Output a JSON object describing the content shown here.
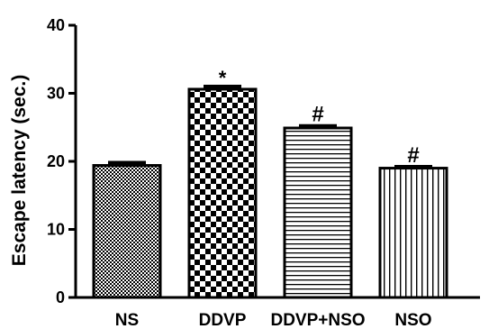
{
  "chart_data": {
    "type": "bar",
    "ylabel": "Escape latency (sec.)",
    "ylim": [
      0,
      40
    ],
    "yticks": [
      0,
      10,
      20,
      30,
      40
    ],
    "yticks_labels": [
      "0",
      "10",
      "20",
      "30",
      "40"
    ],
    "grid": false,
    "categories": [
      "NS",
      "DDVP",
      "DDVP+NSO",
      "NSO"
    ],
    "values": [
      19.4,
      30.6,
      24.9,
      19.0
    ],
    "errors": [
      0.4,
      0.4,
      0.3,
      0.2
    ],
    "annotations": [
      "",
      "*",
      "#",
      "#"
    ],
    "patterns": [
      "fine-checker",
      "coarse-checker",
      "horizontal-lines",
      "vertical-lines"
    ]
  }
}
